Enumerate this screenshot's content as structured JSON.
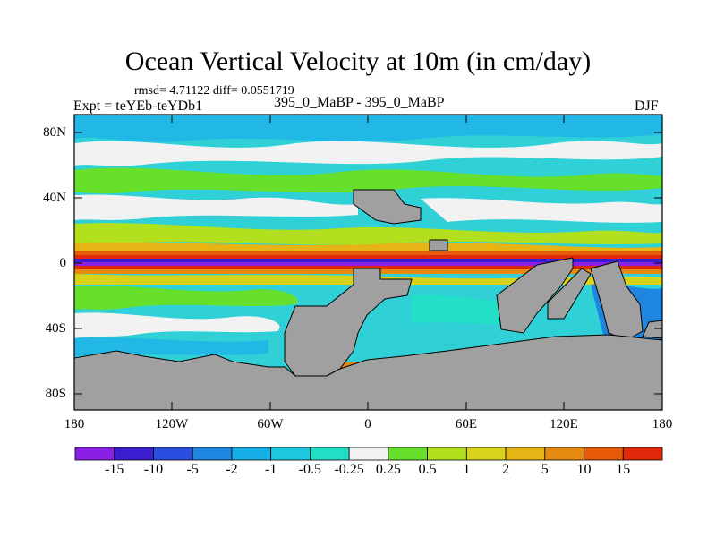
{
  "title": "Ocean Vertical Velocity at 10m (in cm/day)",
  "stats": "rmsd= 4.71122 diff= 0.0551719",
  "experiment": "Expt = teYEb-teYDb1",
  "cases": "395_0_MaBP - 395_0_MaBP",
  "season": "DJF",
  "y_axis": {
    "ticks": [
      "80N",
      "40N",
      "0",
      "40S",
      "80S"
    ]
  },
  "x_axis": {
    "ticks": [
      "180",
      "120W",
      "60W",
      "0",
      "60E",
      "120E",
      "180"
    ]
  },
  "colorbar": {
    "labels": [
      "-15",
      "-10",
      "-5",
      "-2",
      "-1",
      "-0.5",
      "-0.25",
      "0.25",
      "0.5",
      "1",
      "2",
      "5",
      "10",
      "15"
    ],
    "colors": [
      "#8a1fe6",
      "#3a1fd0",
      "#2a4fe0",
      "#1e86e0",
      "#16aee6",
      "#1ec8e0",
      "#22e0c8",
      "#f2f2f2",
      "#66e02a",
      "#b2e01e",
      "#d8d21a",
      "#e6b414",
      "#e68a10",
      "#e65a0a",
      "#e0280a"
    ]
  }
}
